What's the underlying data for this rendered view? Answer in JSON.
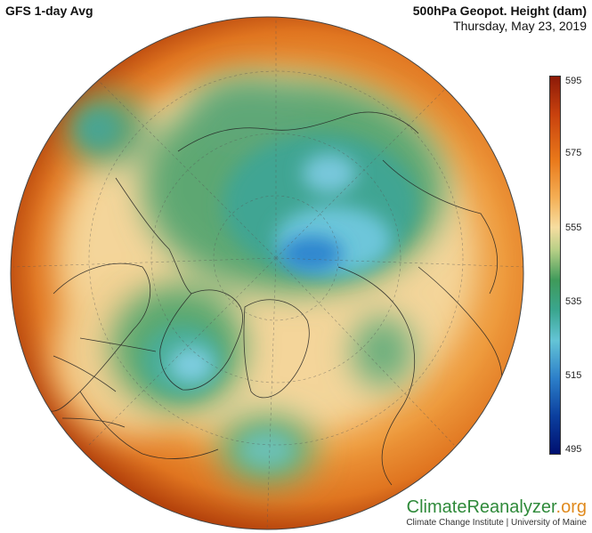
{
  "header": {
    "left_title": "GFS 1-day Avg",
    "right_title": "500hPa Geopot. Height (dam)",
    "date": "Thursday, May 23, 2019"
  },
  "colorbar": {
    "ticks": [
      "595",
      "575",
      "555",
      "535",
      "515",
      "495"
    ],
    "colors": {
      "max": "#8c1a08",
      "orange": "#e9781a",
      "mid": "#f6dda0",
      "green": "#3f9a5a",
      "teal": "#3aa68f",
      "cyan": "#64c4d6",
      "blue": "#2c7fc9",
      "min": "#001070"
    }
  },
  "branding": {
    "logo_part1": "Climate",
    "logo_part2": "Reanalyzer",
    "logo_part3": ".org",
    "subtitle": "Climate Change Institute | University of Maine"
  }
}
